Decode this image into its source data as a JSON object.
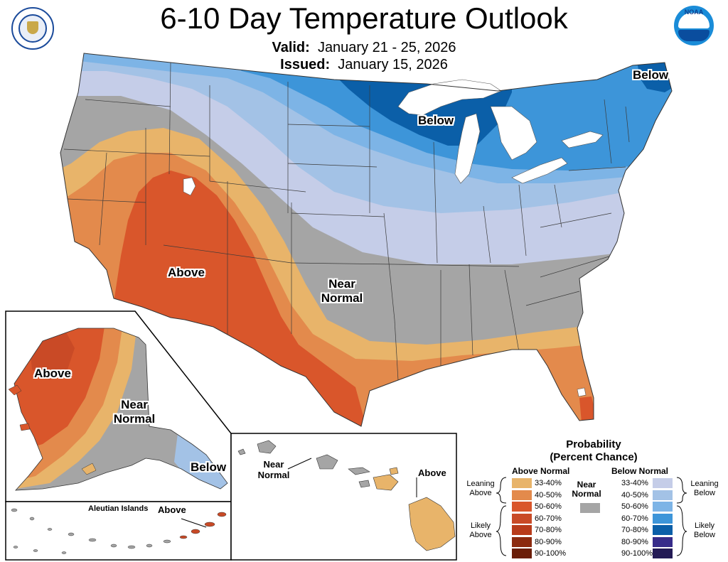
{
  "header": {
    "title": "6-10 Day Temperature Outlook",
    "valid_label": "Valid:",
    "valid_value": "January 21 - 25, 2026",
    "issued_label": "Issued:",
    "issued_value": "January 15, 2026",
    "logo_left": "Department of Commerce seal",
    "logo_right": "NOAA"
  },
  "map_labels": {
    "conus_below_ne": "Below",
    "conus_below_gl": "Below",
    "conus_above": "Above",
    "conus_near_1": "Near",
    "conus_near_2": "Normal",
    "ak_above": "Above",
    "ak_near_1": "Near",
    "ak_near_2": "Normal",
    "ak_below": "Below",
    "aleutian_title": "Aleutian Islands",
    "aleutian_above": "Above",
    "hi_near_1": "Near",
    "hi_near_2": "Normal",
    "hi_above": "Above"
  },
  "legend": {
    "title_1": "Probability",
    "title_2": "(Percent Chance)",
    "above_head": "Above Normal",
    "below_head": "Below Normal",
    "near_1": "Near",
    "near_2": "Normal",
    "leaning_above_1": "Leaning",
    "leaning_above_2": "Above",
    "likely_above_1": "Likely",
    "likely_above_2": "Above",
    "leaning_below_1": "Leaning",
    "leaning_below_2": "Below",
    "likely_below_1": "Likely",
    "likely_below_2": "Below",
    "ranges": [
      "33-40%",
      "40-50%",
      "50-60%",
      "60-70%",
      "70-80%",
      "80-90%",
      "90-100%"
    ],
    "above_colors": [
      "#e8b46a",
      "#e38a4c",
      "#d9562b",
      "#c94a26",
      "#b83b1a",
      "#8c2a0f",
      "#6b1e08"
    ],
    "below_colors": [
      "#c5cde8",
      "#a3c2e6",
      "#7db4e6",
      "#3d95d9",
      "#0b5fa8",
      "#372c8a",
      "#231a55"
    ],
    "near_color": "#a5a5a5"
  }
}
